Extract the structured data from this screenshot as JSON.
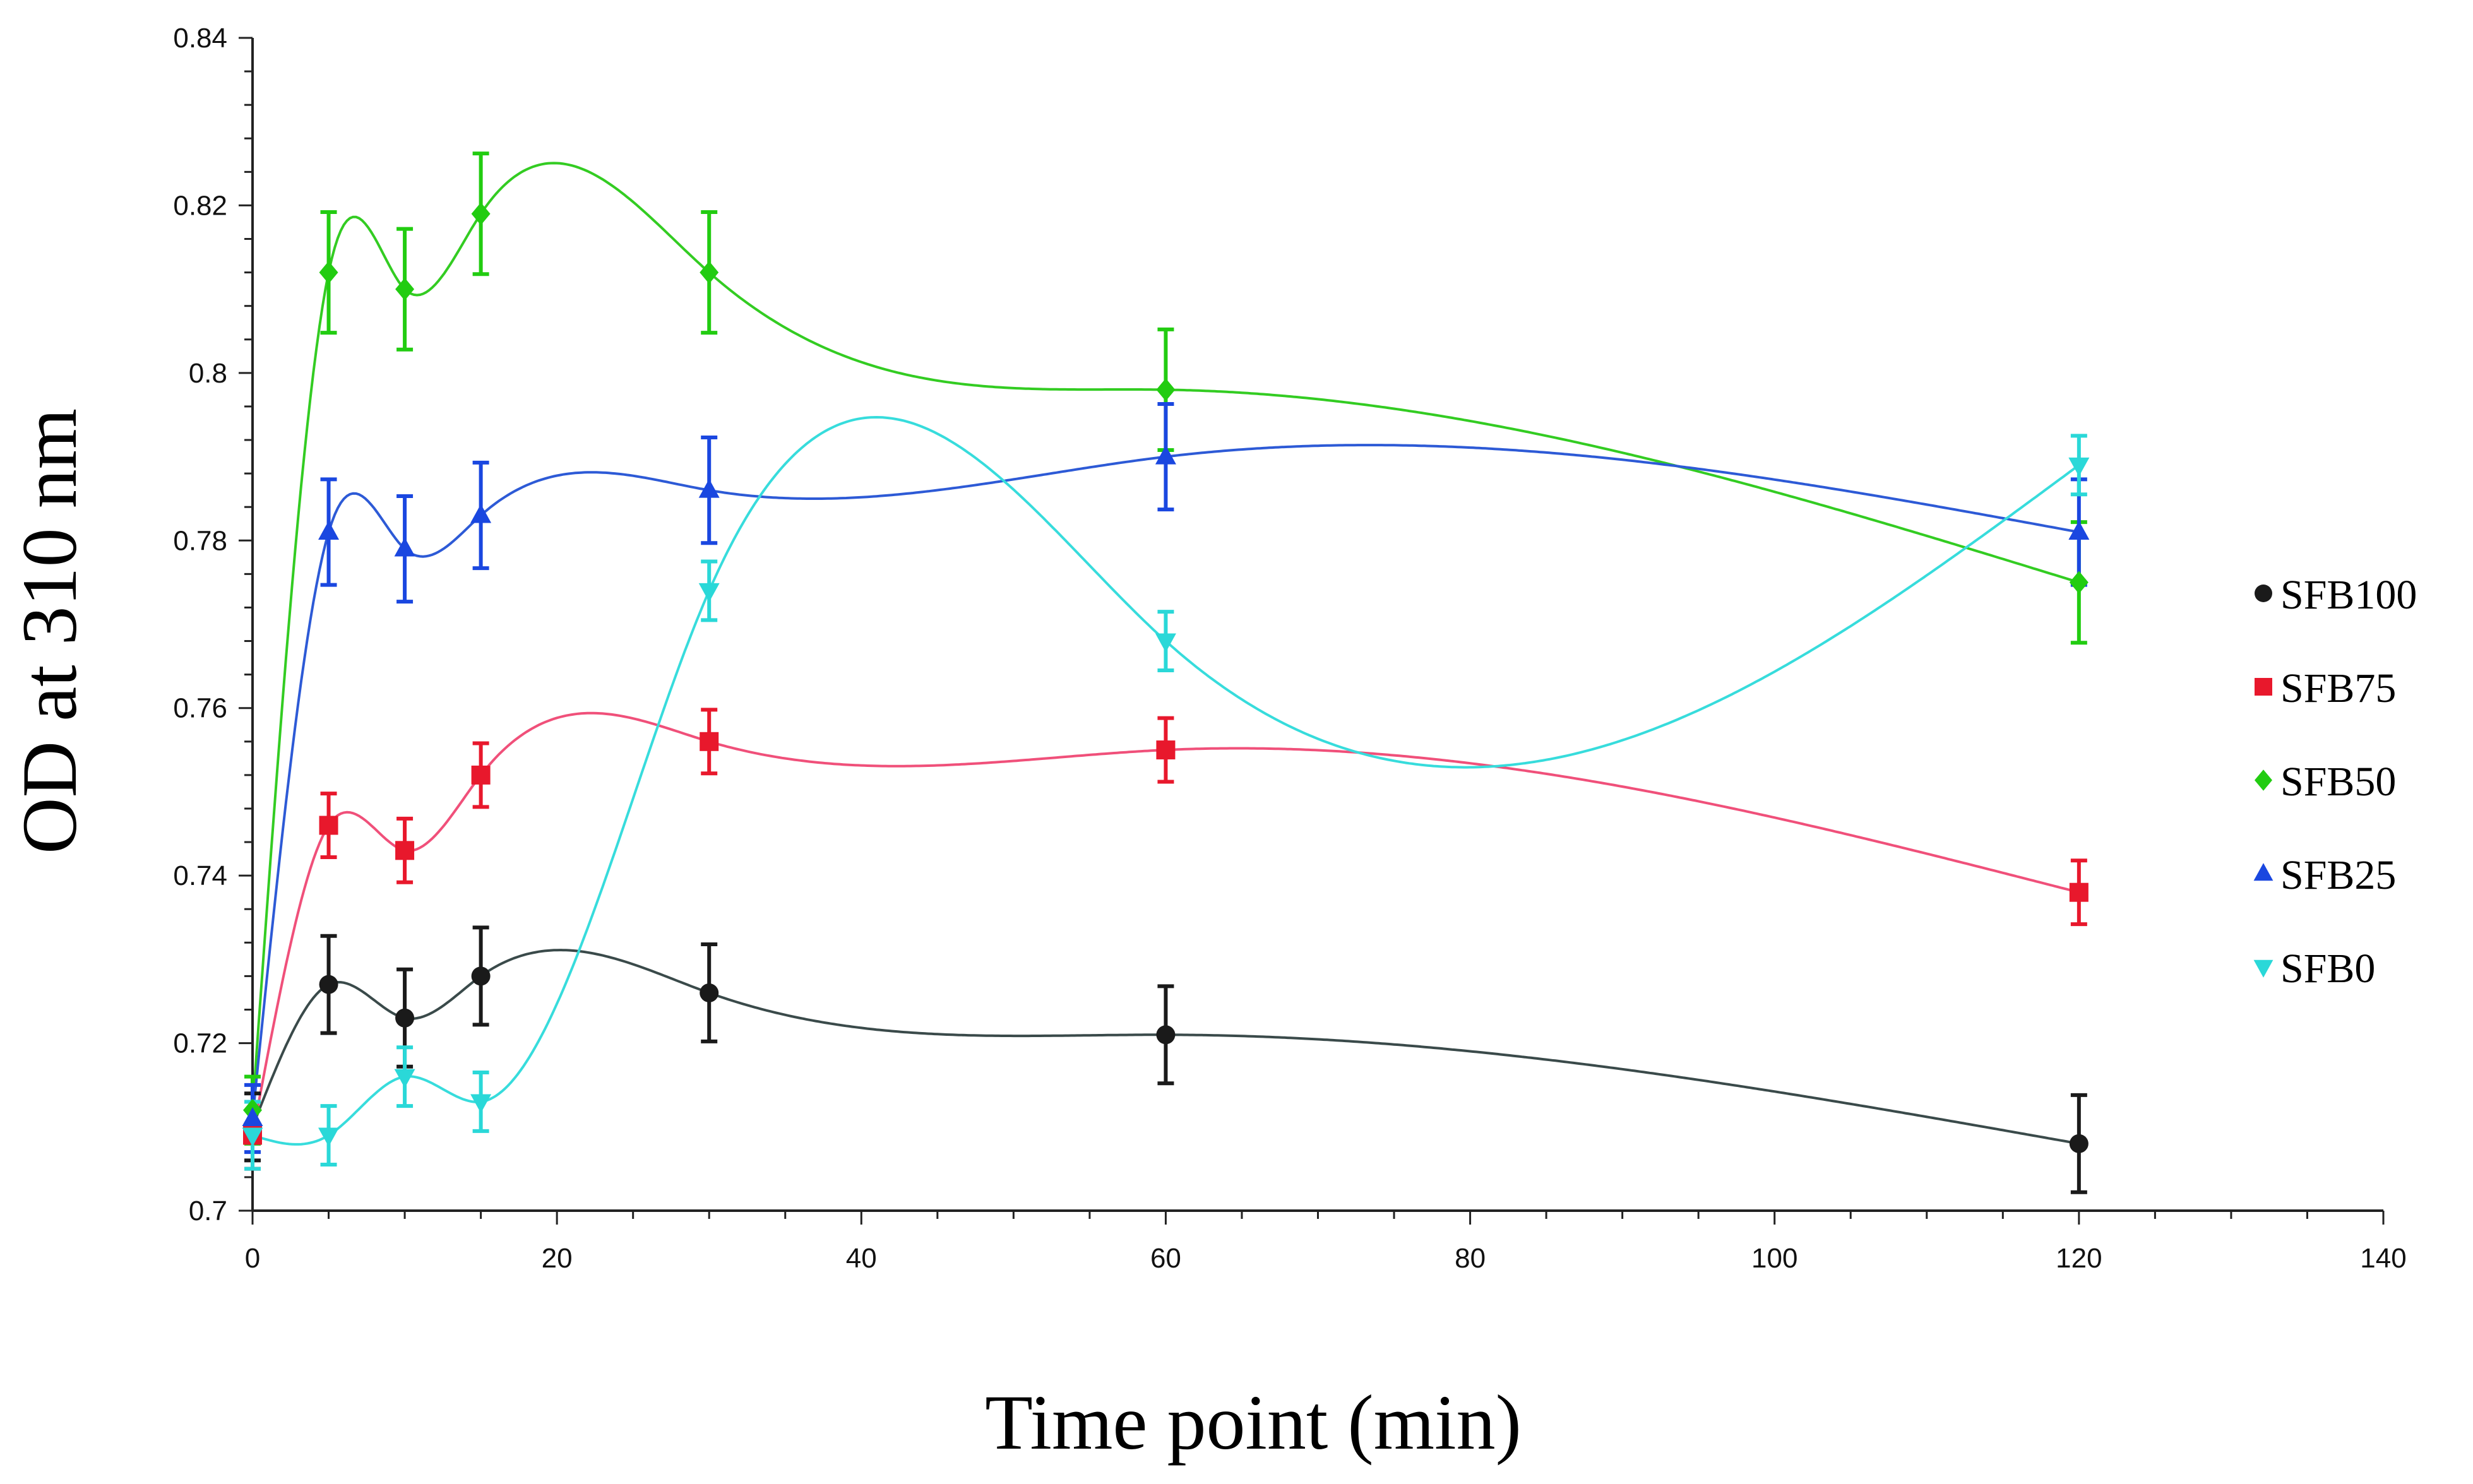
{
  "chart_data": {
    "type": "line",
    "title": "",
    "xlabel": "Time point (min)",
    "ylabel": "OD at 310 nm",
    "xlim": [
      0,
      140
    ],
    "ylim": [
      0.7,
      0.84
    ],
    "x_ticks": [
      0,
      20,
      40,
      60,
      80,
      100,
      120,
      140
    ],
    "y_ticks": [
      0.7,
      0.72,
      0.74,
      0.76,
      0.78,
      0.8,
      0.82,
      0.84
    ],
    "x_tick_labels": [
      "0",
      "20",
      "40",
      "60",
      "80",
      "100",
      "120",
      "140"
    ],
    "y_tick_labels": [
      "0.7",
      "0.72",
      "0.74",
      "0.76",
      "0.78",
      "0.8",
      "0.82",
      "0.84"
    ],
    "grid": false,
    "legend_position": "right",
    "series": [
      {
        "name": "SFB100",
        "color": "#1a1a1a",
        "curve_color": "#3a4a4a",
        "marker": "circle",
        "x": [
          0,
          5,
          10,
          15,
          30,
          60,
          120
        ],
        "y": [
          0.71,
          0.727,
          0.723,
          0.728,
          0.726,
          0.721,
          0.708
        ],
        "err": [
          0.004,
          0.0058,
          0.0058,
          0.0058,
          0.0058,
          0.0058,
          0.0058
        ]
      },
      {
        "name": "SFB75",
        "color": "#e8182c",
        "curve_color": "#f0507a",
        "marker": "square",
        "x": [
          0,
          5,
          10,
          15,
          30,
          60,
          120
        ],
        "y": [
          0.709,
          0.746,
          0.743,
          0.752,
          0.756,
          0.755,
          0.738
        ],
        "err": [
          0.004,
          0.0038,
          0.0038,
          0.0038,
          0.0038,
          0.0038,
          0.0038
        ]
      },
      {
        "name": "SFB50",
        "color": "#22cc11",
        "curve_color": "#33cc22",
        "marker": "diamond",
        "x": [
          0,
          5,
          10,
          15,
          30,
          60,
          120
        ],
        "y": [
          0.712,
          0.812,
          0.81,
          0.819,
          0.812,
          0.798,
          0.775
        ],
        "err": [
          0.004,
          0.0072,
          0.0072,
          0.0072,
          0.0072,
          0.0072,
          0.0072
        ]
      },
      {
        "name": "SFB25",
        "color": "#1a47e0",
        "curve_color": "#2d5ad6",
        "marker": "triangle-up",
        "x": [
          0,
          5,
          10,
          15,
          30,
          60,
          120
        ],
        "y": [
          0.711,
          0.781,
          0.779,
          0.783,
          0.786,
          0.79,
          0.781
        ],
        "err": [
          0.004,
          0.0063,
          0.0063,
          0.0063,
          0.0063,
          0.0063,
          0.0063
        ]
      },
      {
        "name": "SFB0",
        "color": "#2ad8d8",
        "curve_color": "#37dcdc",
        "marker": "triangle-down",
        "x": [
          0,
          5,
          10,
          15,
          30,
          60,
          120
        ],
        "y": [
          0.709,
          0.709,
          0.716,
          0.713,
          0.774,
          0.768,
          0.789
        ],
        "err": [
          0.004,
          0.0035,
          0.0035,
          0.0035,
          0.0035,
          0.0035,
          0.0035
        ]
      }
    ]
  }
}
